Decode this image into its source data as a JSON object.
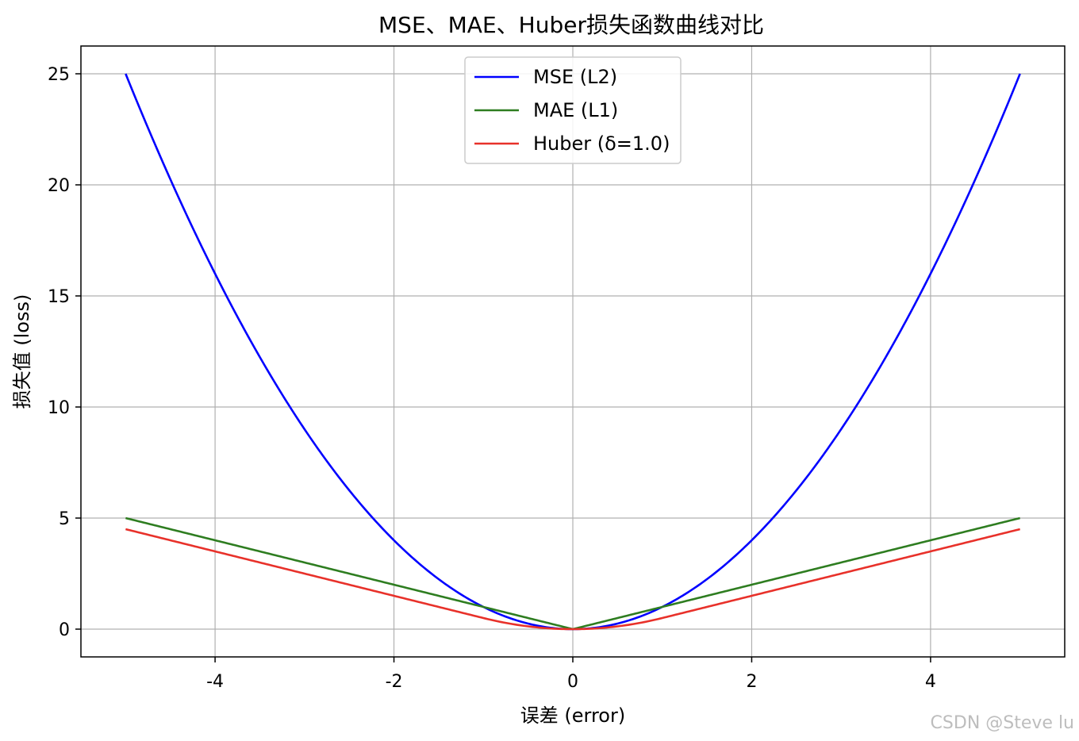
{
  "chart_data": {
    "type": "line",
    "title": "MSE、MAE、Huber损失函数曲线对比",
    "xlabel": "误差 (error)",
    "ylabel": "损失值 (loss)",
    "xlim": [
      -5.5,
      5.5
    ],
    "ylim": [
      -1.25,
      26.25
    ],
    "grid": true,
    "legend_position": "top-center",
    "x_ticks": [
      -4,
      -2,
      0,
      2,
      4
    ],
    "x_tick_labels": [
      "-4",
      "-2",
      "0",
      "2",
      "4"
    ],
    "y_ticks": [
      0,
      5,
      10,
      15,
      20,
      25
    ],
    "y_tick_labels": [
      "0",
      "5",
      "10",
      "15",
      "20",
      "25"
    ],
    "x_range": [
      -5,
      5
    ],
    "huber_delta": 1.0,
    "series": [
      {
        "name": "MSE (L2)",
        "color": "#0000ff",
        "function": "e^2",
        "x": [
          -5,
          -4,
          -3,
          -2,
          -1,
          0,
          1,
          2,
          3,
          4,
          5
        ],
        "values": [
          25,
          16,
          9,
          4,
          1,
          0,
          1,
          4,
          9,
          16,
          25
        ]
      },
      {
        "name": "MAE (L1)",
        "color": "#2e7d20",
        "function": "|e|",
        "x": [
          -5,
          -4,
          -3,
          -2,
          -1,
          0,
          1,
          2,
          3,
          4,
          5
        ],
        "values": [
          5,
          4,
          3,
          2,
          1,
          0,
          1,
          2,
          3,
          4,
          5
        ]
      },
      {
        "name": "Huber (δ=1.0)",
        "color": "#e8312a",
        "function": "huber",
        "x": [
          -5,
          -4,
          -3,
          -2,
          -1,
          0,
          1,
          2,
          3,
          4,
          5
        ],
        "values": [
          4.5,
          3.5,
          2.5,
          1.5,
          0.5,
          0,
          0.5,
          1.5,
          2.5,
          3.5,
          4.5
        ]
      }
    ]
  },
  "watermark": "CSDN @Steve lu"
}
